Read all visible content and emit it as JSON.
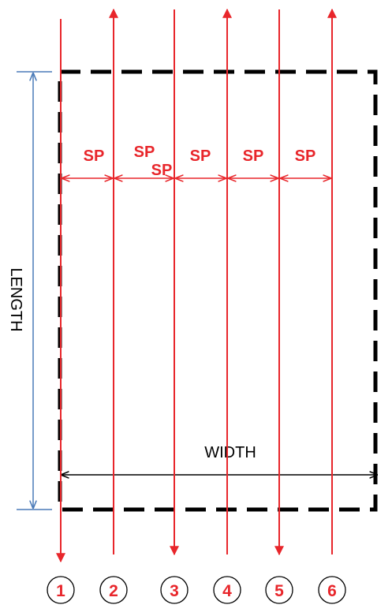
{
  "labels": {
    "length": "LENGTH",
    "width": "WIDTH"
  },
  "spacing_labels": [
    "SP",
    "SP",
    "SP",
    "SP",
    "SP",
    "SP"
  ],
  "passes": [
    {
      "number": "1",
      "direction": "down"
    },
    {
      "number": "2",
      "direction": "up"
    },
    {
      "number": "3",
      "direction": "down"
    },
    {
      "number": "4",
      "direction": "up"
    },
    {
      "number": "5",
      "direction": "down"
    },
    {
      "number": "6",
      "direction": "up"
    }
  ],
  "colors": {
    "pass_line": "#e8262b",
    "boundary": "#000000",
    "length_dimension": "#4a7ab8",
    "width_dimension": "#000000",
    "circle": "#000000"
  }
}
